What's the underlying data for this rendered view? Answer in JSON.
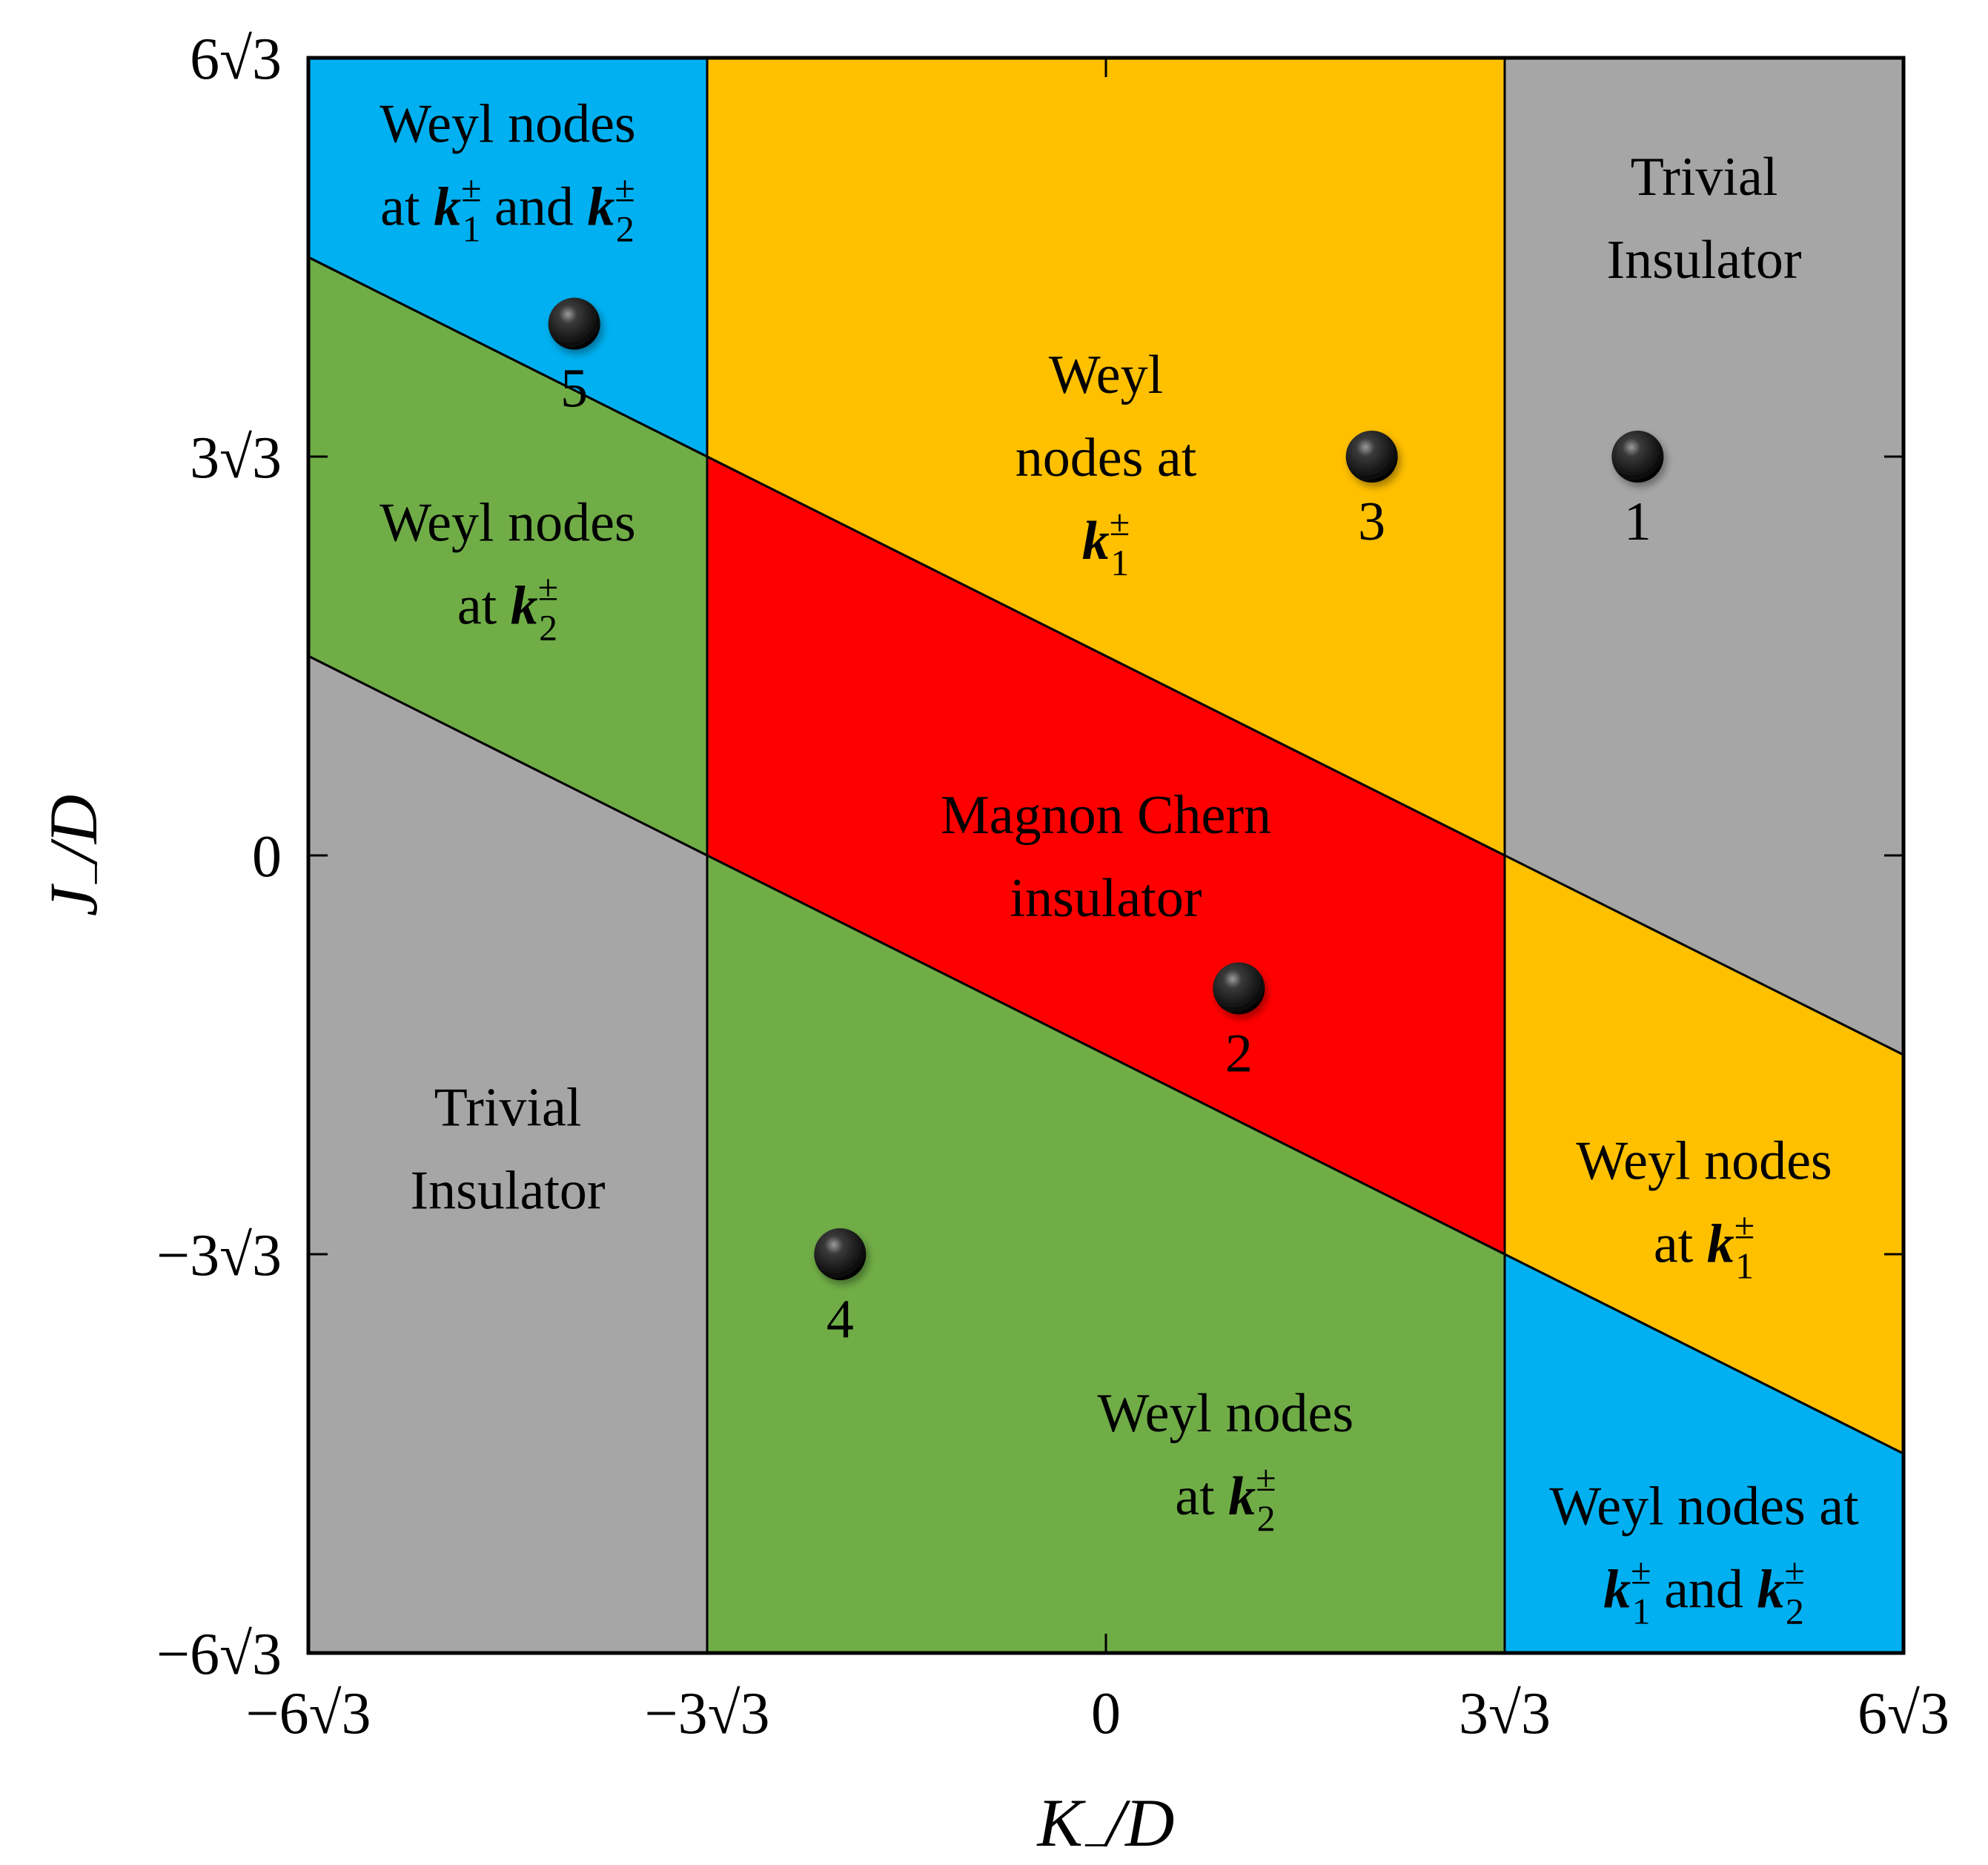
{
  "chart_data": {
    "type": "area",
    "xlabel": {
      "main": "K",
      "sub": "−",
      "rest": "/D"
    },
    "ylabel": {
      "main": "J",
      "sub": "−",
      "rest": "/D"
    },
    "xlim_in_units_of_sqrt3": [
      -6,
      6
    ],
    "ylim_in_units_of_sqrt3": [
      -6,
      6
    ],
    "x_ticks": [
      {
        "value": -6,
        "label": "−6√3"
      },
      {
        "value": -3,
        "label": "−3√3"
      },
      {
        "value": 0,
        "label": "0"
      },
      {
        "value": 3,
        "label": "3√3"
      },
      {
        "value": 6,
        "label": "6√3"
      }
    ],
    "y_ticks": [
      {
        "value": -6,
        "label": "−6√3"
      },
      {
        "value": -3,
        "label": "−3√3"
      },
      {
        "value": 0,
        "label": "0"
      },
      {
        "value": 3,
        "label": "3√3"
      },
      {
        "value": 6,
        "label": "6√3"
      }
    ],
    "colors": {
      "trivial": "#a6a6a6",
      "weyl_k1": "#ffc000",
      "weyl_k2": "#70ad47",
      "weyl_k1_k2": "#00b0f0",
      "chern": "#ff0000"
    },
    "regions": [
      {
        "id": "chern",
        "color_key": "chern",
        "polygon": [
          [
            -3,
            3
          ],
          [
            3,
            0
          ],
          [
            3,
            -3
          ],
          [
            -3,
            0
          ]
        ],
        "label_lines": [
          [
            {
              "t": "Magnon Chern"
            }
          ],
          [
            {
              "t": "insulator"
            }
          ]
        ],
        "label_at": [
          0,
          0
        ]
      },
      {
        "id": "weyl-k1-top",
        "color_key": "weyl_k1",
        "polygon": [
          [
            -3,
            6
          ],
          [
            3,
            6
          ],
          [
            3,
            0
          ],
          [
            -3,
            3
          ]
        ],
        "label_lines": [
          [
            {
              "t": "Weyl"
            }
          ],
          [
            {
              "t": "nodes at"
            }
          ],
          [
            {
              "k": "1"
            }
          ]
        ],
        "label_at": [
          0,
          3
        ]
      },
      {
        "id": "trivial-right",
        "color_key": "trivial",
        "polygon": [
          [
            3,
            6
          ],
          [
            6,
            6
          ],
          [
            6,
            -1.5
          ],
          [
            3,
            0
          ]
        ],
        "label_lines": [
          [
            {
              "t": "Trivial"
            }
          ],
          [
            {
              "t": "Insulator"
            }
          ]
        ],
        "label_at": [
          4.5,
          4.8
        ]
      },
      {
        "id": "weyl-k1-right",
        "color_key": "weyl_k1",
        "polygon": [
          [
            3,
            0
          ],
          [
            6,
            -1.5
          ],
          [
            6,
            -4.5
          ],
          [
            3,
            -3
          ]
        ],
        "label_lines": [
          [
            {
              "t": "Weyl nodes"
            }
          ],
          [
            {
              "t": "at "
            },
            {
              "k": "1"
            }
          ]
        ],
        "label_at": [
          4.5,
          -2.6
        ]
      },
      {
        "id": "weyl-k1k2-bottom-right",
        "color_key": "weyl_k1_k2",
        "polygon": [
          [
            3,
            -3
          ],
          [
            6,
            -4.5
          ],
          [
            6,
            -6
          ],
          [
            3,
            -6
          ]
        ],
        "label_lines": [
          [
            {
              "t": "Weyl nodes at"
            }
          ],
          [
            {
              "k": "1"
            },
            {
              "t": " and "
            },
            {
              "k": "2"
            }
          ]
        ],
        "label_at": [
          4.5,
          -5.2
        ]
      },
      {
        "id": "weyl-k2-bottom",
        "color_key": "weyl_k2",
        "polygon": [
          [
            -3,
            0
          ],
          [
            3,
            -3
          ],
          [
            3,
            -6
          ],
          [
            -3,
            -6
          ]
        ],
        "label_lines": [
          [
            {
              "t": "Weyl nodes"
            }
          ],
          [
            {
              "t": "at "
            },
            {
              "k": "2"
            }
          ]
        ],
        "label_at": [
          0.9,
          -4.5
        ]
      },
      {
        "id": "trivial-left",
        "color_key": "trivial",
        "polygon": [
          [
            -6,
            1.5
          ],
          [
            -3,
            0
          ],
          [
            -3,
            -6
          ],
          [
            -6,
            -6
          ]
        ],
        "label_lines": [
          [
            {
              "t": "Trivial"
            }
          ],
          [
            {
              "t": "Insulator"
            }
          ]
        ],
        "label_at": [
          -4.5,
          -2.2
        ]
      },
      {
        "id": "weyl-k2-left",
        "color_key": "weyl_k2",
        "polygon": [
          [
            -6,
            4.5
          ],
          [
            -3,
            3
          ],
          [
            -3,
            0
          ],
          [
            -6,
            1.5
          ]
        ],
        "label_lines": [
          [
            {
              "t": "Weyl nodes"
            }
          ],
          [
            {
              "t": "at "
            },
            {
              "k": "2"
            }
          ]
        ],
        "label_at": [
          -4.5,
          2.2
        ]
      },
      {
        "id": "weyl-k1k2-top-left",
        "color_key": "weyl_k1_k2",
        "polygon": [
          [
            -6,
            6
          ],
          [
            -3,
            6
          ],
          [
            -3,
            3
          ],
          [
            -6,
            4.5
          ]
        ],
        "label_lines": [
          [
            {
              "t": "Weyl nodes"
            }
          ],
          [
            {
              "t": "at "
            },
            {
              "k": "1"
            },
            {
              "t": " and "
            },
            {
              "k": "2"
            }
          ]
        ],
        "label_at": [
          -4.5,
          5.2
        ]
      }
    ],
    "points": [
      {
        "label": "1",
        "x": 4,
        "y": 3
      },
      {
        "label": "2",
        "x": 1,
        "y": -1
      },
      {
        "label": "3",
        "x": 2,
        "y": 3
      },
      {
        "label": "4",
        "x": -2,
        "y": -3
      },
      {
        "label": "5",
        "x": -4,
        "y": 4
      }
    ]
  }
}
